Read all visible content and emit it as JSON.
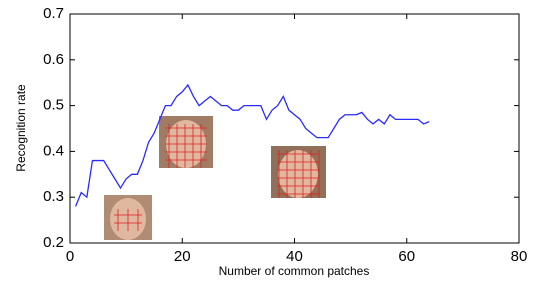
{
  "chart_data": {
    "type": "line",
    "x_label": "Number of common patches",
    "y_label": "Recognition rate",
    "x": [
      1,
      2,
      3,
      4,
      5,
      6,
      7,
      8,
      9,
      10,
      11,
      12,
      13,
      14,
      15,
      16,
      17,
      18,
      19,
      20,
      21,
      22,
      23,
      24,
      25,
      26,
      27,
      28,
      29,
      30,
      31,
      32,
      33,
      34,
      35,
      36,
      37,
      38,
      39,
      40,
      41,
      42,
      43,
      44,
      45,
      46,
      47,
      48,
      49,
      50,
      51,
      52,
      53,
      54,
      55,
      56,
      57,
      58,
      59,
      60,
      61,
      62,
      63,
      64
    ],
    "series": [
      {
        "color": "#2b2bff",
        "values": [
          0.28,
          0.31,
          0.3,
          0.38,
          0.38,
          0.38,
          0.36,
          0.34,
          0.32,
          0.34,
          0.35,
          0.35,
          0.38,
          0.42,
          0.44,
          0.47,
          0.5,
          0.5,
          0.52,
          0.53,
          0.545,
          0.52,
          0.5,
          0.51,
          0.52,
          0.51,
          0.5,
          0.5,
          0.49,
          0.49,
          0.5,
          0.5,
          0.5,
          0.5,
          0.47,
          0.49,
          0.5,
          0.52,
          0.49,
          0.48,
          0.47,
          0.45,
          0.44,
          0.43,
          0.43,
          0.43,
          0.45,
          0.47,
          0.48,
          0.48,
          0.48,
          0.485,
          0.47,
          0.46,
          0.47,
          0.46,
          0.48,
          0.47,
          0.47,
          0.47,
          0.47,
          0.47,
          0.46,
          0.465
        ]
      }
    ],
    "xlim": [
      0,
      80
    ],
    "xticks": [
      0,
      20,
      40,
      60,
      80
    ],
    "ylim": [
      0.2,
      0.7
    ],
    "yticks": [
      0.2,
      0.3,
      0.4,
      0.5,
      0.6,
      0.7
    ]
  }
}
